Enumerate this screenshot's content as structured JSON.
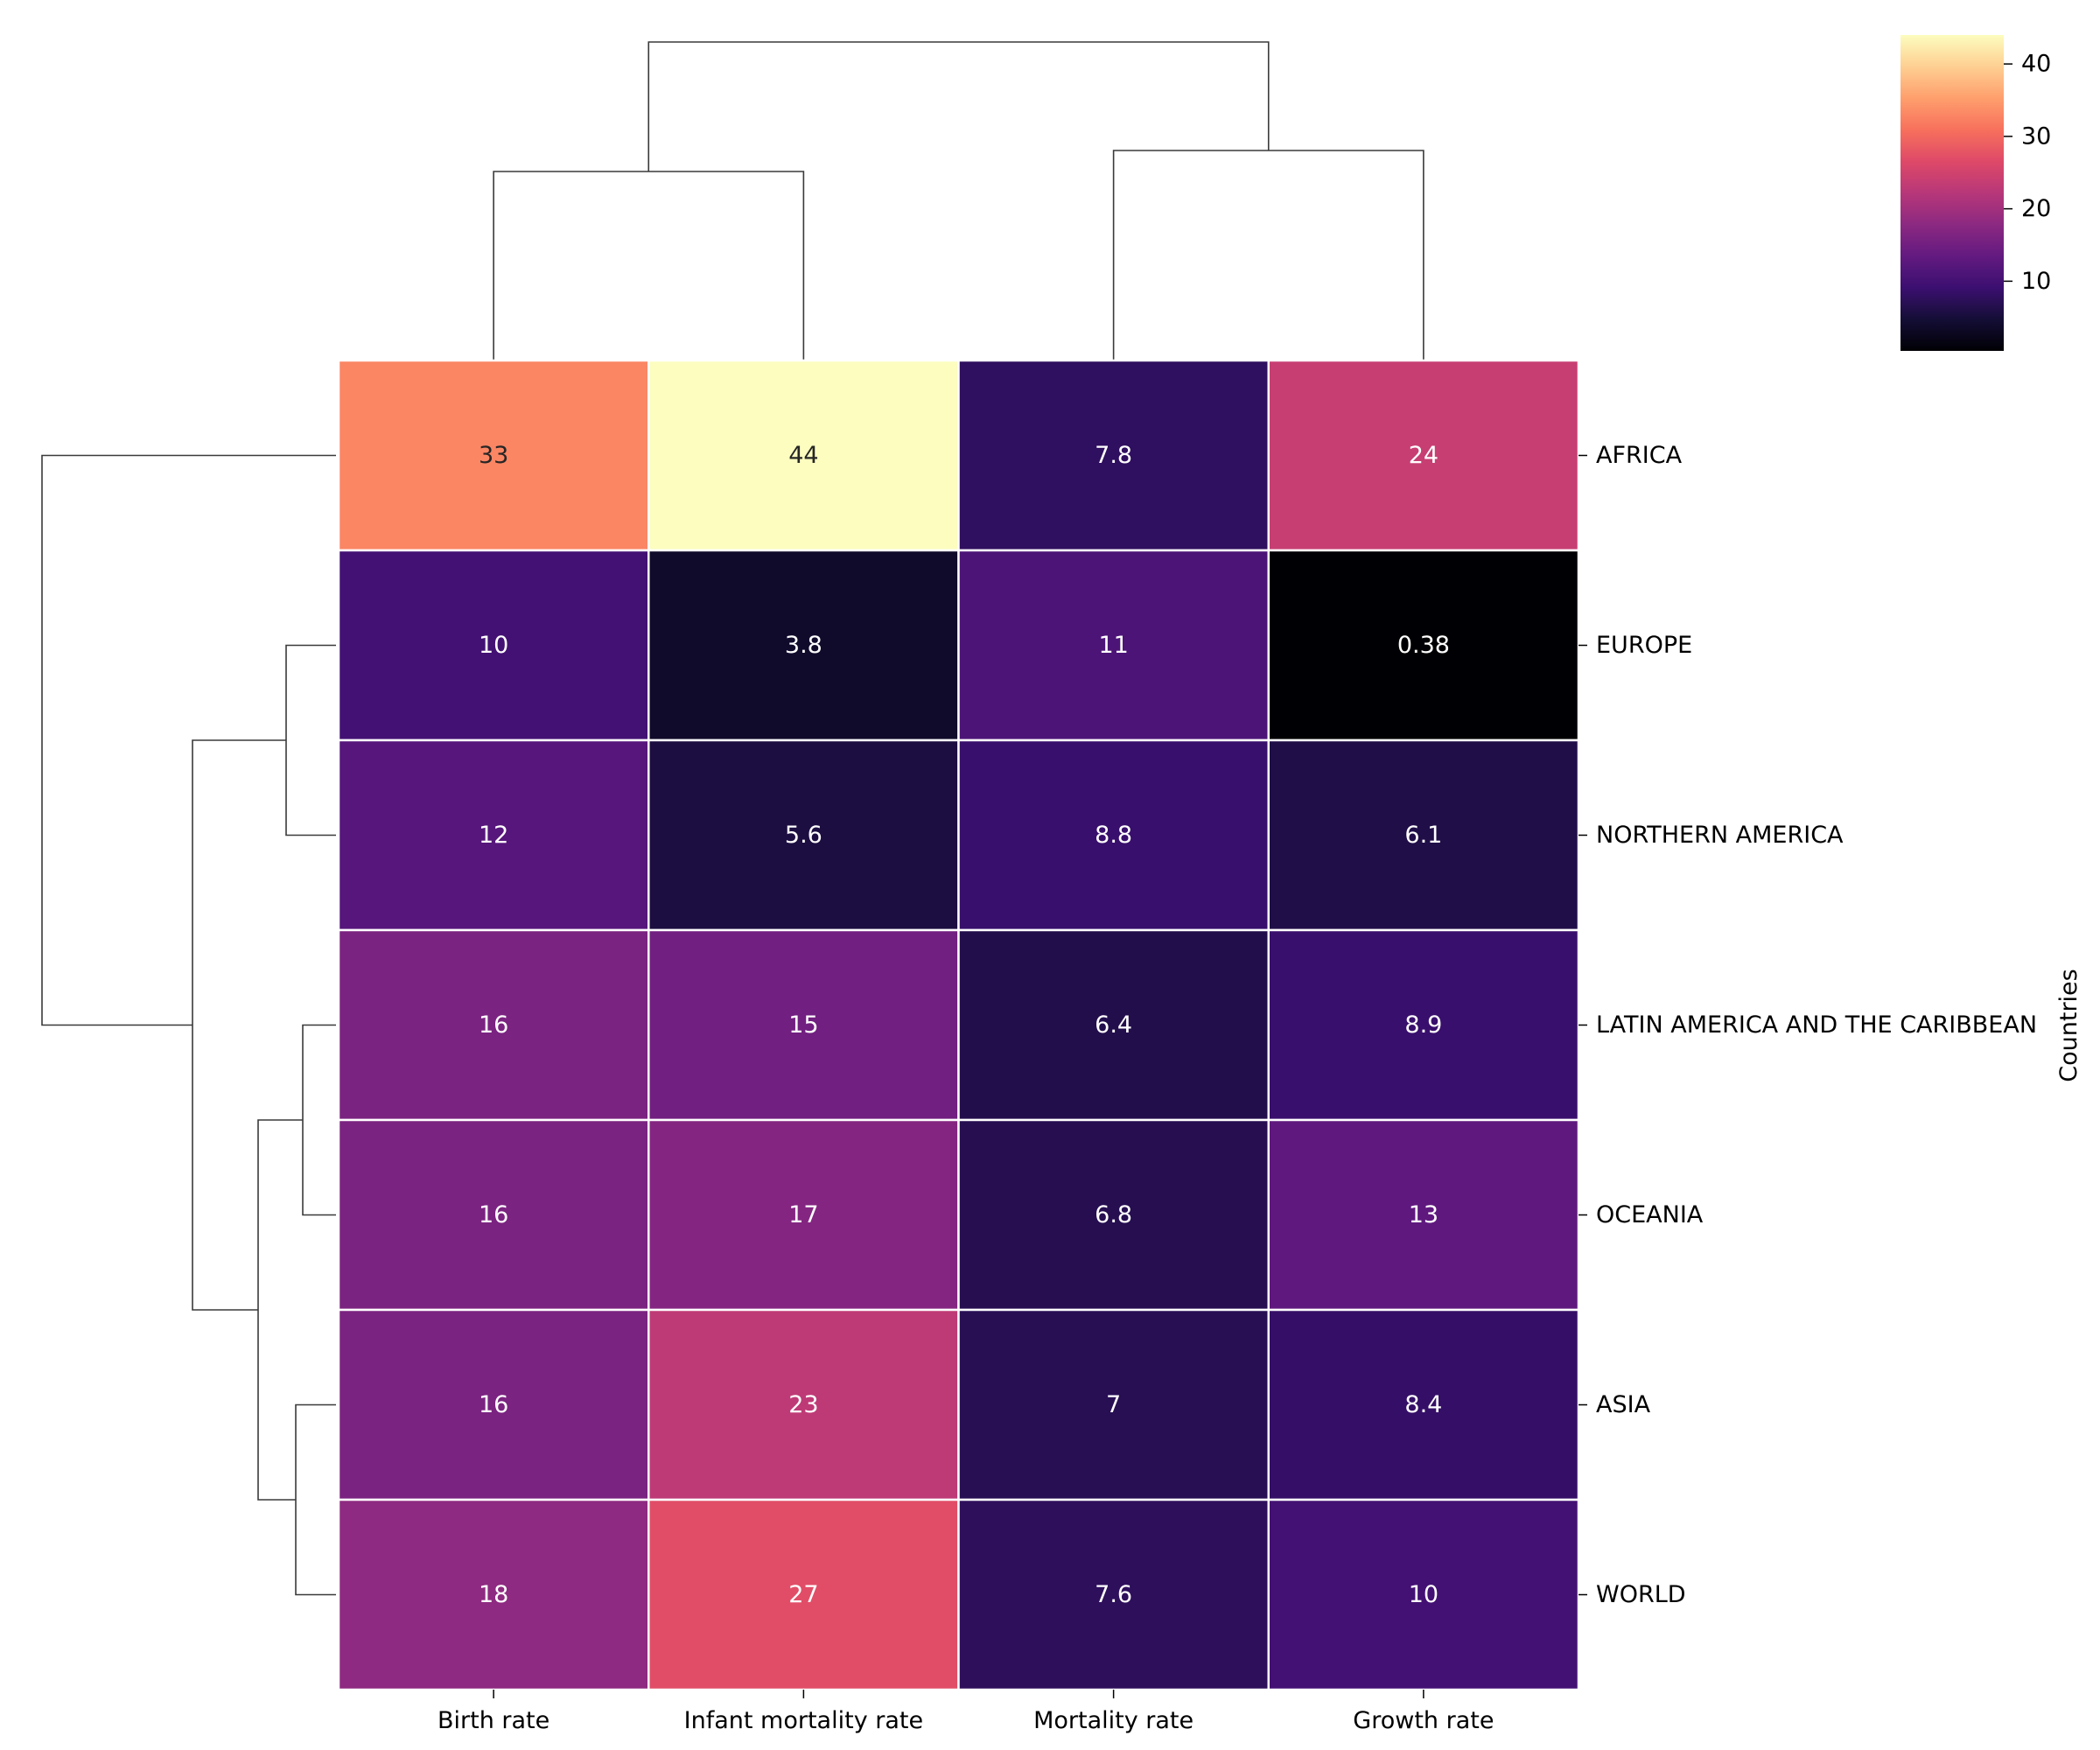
{
  "chart_data": {
    "type": "heatmap",
    "columns": [
      "Birth rate",
      "Infant mortality rate",
      "Mortality rate",
      "Growth rate"
    ],
    "rows": [
      "AFRICA",
      "EUROPE",
      "NORTHERN AMERICA",
      "LATIN AMERICA AND THE CARIBBEAN",
      "OCEANIA",
      "ASIA",
      "WORLD"
    ],
    "values": [
      [
        33,
        44,
        7.8,
        24
      ],
      [
        10,
        3.8,
        11,
        0.38
      ],
      [
        12,
        5.6,
        8.8,
        6.1
      ],
      [
        16,
        15,
        6.4,
        8.9
      ],
      [
        16,
        17,
        6.8,
        13
      ],
      [
        16,
        23,
        7,
        8.4
      ],
      [
        18,
        27,
        7.6,
        10
      ]
    ],
    "value_labels": [
      [
        "33",
        "44",
        "7.8",
        "24"
      ],
      [
        "10",
        "3.8",
        "11",
        "0.38"
      ],
      [
        "12",
        "5.6",
        "8.8",
        "6.1"
      ],
      [
        "16",
        "15",
        "6.4",
        "8.9"
      ],
      [
        "16",
        "17",
        "6.8",
        "13"
      ],
      [
        "16",
        "23",
        "7",
        "8.4"
      ],
      [
        "18",
        "27",
        "7.6",
        "10"
      ]
    ],
    "ylabel": "Countries",
    "xlabel": "",
    "colormap": "magma",
    "color_range": [
      0.38,
      44
    ],
    "colorbar_ticks": [
      "10",
      "20",
      "30",
      "40"
    ],
    "colorbar_tick_values": [
      10,
      20,
      30,
      40
    ],
    "colorbar_position": "top-right",
    "row_dendrogram": "left",
    "column_dendrogram": "top"
  }
}
